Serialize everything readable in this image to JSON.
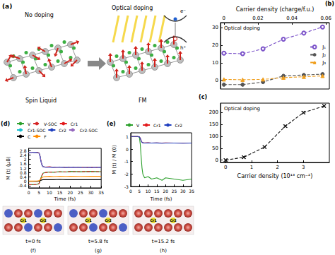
{
  "diagram": {
    "label": "(a)",
    "left": {
      "title": "No doping",
      "caption": "Spin Liquid"
    },
    "right": {
      "title": "Optical doping",
      "caption": "FM"
    },
    "carriers": [
      "e⁻",
      "h⁺"
    ]
  },
  "chart_data": [
    {
      "title": "(b)",
      "type": "line",
      "annotations": [
        "Optical doping"
      ],
      "xlabel": "Carrier density (charge/f.u.)",
      "x": [
        0,
        0.011,
        0.023,
        0.035,
        0.047,
        0.058
      ],
      "xlim": [
        -0.002,
        0.062
      ],
      "xticks": [
        0,
        0.02,
        0.04,
        0.06
      ],
      "ylim": [
        -5,
        33
      ],
      "yticks": [
        0,
        10,
        20,
        30
      ],
      "grid": false,
      "legend": "right",
      "series": [
        {
          "name": "J₁",
          "color": "#7b52c9",
          "marker": "open circle",
          "line_style": "dashed",
          "values": [
            15.5,
            15.2,
            18,
            23.5,
            27,
            30.5
          ]
        },
        {
          "name": "J₂",
          "color": "#555555",
          "marker": "circle",
          "line_style": "dashed",
          "values": [
            -2.5,
            -2.5,
            -1,
            2.5,
            3,
            3.5
          ]
        },
        {
          "name": "J₃",
          "color": "#f0a020",
          "marker": "triangle",
          "line_style": "dashed",
          "values": [
            0.5,
            0.3,
            0.5,
            1.5,
            2,
            2.5
          ]
        }
      ]
    },
    {
      "title": "(c)",
      "type": "line",
      "annotations": [
        "Optical doping"
      ],
      "xlabel": "Carrier density (10¹³ cm⁻²)",
      "x": [
        0,
        0.7,
        1.5,
        2.3,
        3.0,
        3.8
      ],
      "xlim": [
        -0.2,
        4
      ],
      "xticks": [
        0,
        1,
        2,
        3
      ],
      "ylim": [
        -10,
        240
      ],
      "yticks": [
        0,
        50,
        100,
        150,
        200
      ],
      "grid": false,
      "color": "#111111",
      "marker": "cross",
      "line_style": "dashed",
      "values": [
        0,
        12,
        55,
        143,
        200,
        228
      ]
    },
    {
      "title": "(d)",
      "type": "line",
      "xlabel": "Time (fs)",
      "ylabel": "M (t) (μB)",
      "x": [
        0,
        2,
        4,
        5,
        5.5,
        6,
        6.5,
        7,
        8,
        10,
        12,
        15,
        18,
        20,
        25,
        30,
        35
      ],
      "xlim": [
        0,
        35
      ],
      "xticks": [
        0,
        5,
        10,
        15,
        20,
        25,
        30,
        35
      ],
      "ylim": [
        -0.6,
        3.0
      ],
      "yticks": [
        -0.4,
        0,
        0.4,
        0.8,
        1.2,
        1.6,
        2,
        2.4,
        2.8
      ],
      "grid": false,
      "legend": "top",
      "series": [
        {
          "name": "V",
          "color": "#2ca02c",
          "line_style": "solid",
          "values": [
            -0.3,
            -0.3,
            -0.28,
            -0.2,
            0.05,
            0.35,
            0.6,
            0.75,
            0.8,
            0.85,
            0.82,
            0.88,
            0.85,
            0.9,
            0.87,
            0.9,
            0.88
          ]
        },
        {
          "name": "V-SOC",
          "color": "#d62728",
          "line_style": "dashed",
          "values": [
            -0.31,
            -0.31,
            -0.29,
            -0.22,
            0.03,
            0.33,
            0.58,
            0.73,
            0.79,
            0.84,
            0.83,
            0.86,
            0.86,
            0.88,
            0.88,
            0.89,
            0.87
          ]
        },
        {
          "name": "Cr1",
          "color": "#e31a1c",
          "line_style": "solid",
          "values": [
            2.65,
            2.65,
            2.64,
            2.6,
            2.3,
            1.8,
            1.45,
            1.35,
            1.3,
            1.32,
            1.28,
            1.3,
            1.27,
            1.3,
            1.28,
            1.27,
            1.28
          ]
        },
        {
          "name": "Cr1-SOC",
          "color": "#17becf",
          "line_style": "dashed",
          "values": [
            2.64,
            2.64,
            2.63,
            2.58,
            2.28,
            1.78,
            1.44,
            1.33,
            1.29,
            1.3,
            1.27,
            1.29,
            1.26,
            1.29,
            1.27,
            1.26,
            1.27
          ]
        },
        {
          "name": "Cr2",
          "color": "#1f3fbf",
          "line_style": "solid",
          "values": [
            2.63,
            2.63,
            2.62,
            2.57,
            2.25,
            1.75,
            1.42,
            1.32,
            1.28,
            1.29,
            1.26,
            1.3,
            1.25,
            1.28,
            1.26,
            1.25,
            1.26
          ]
        },
        {
          "name": "Cr2-SOC",
          "color": "#9467bd",
          "line_style": "dashed",
          "values": [
            2.62,
            2.62,
            2.61,
            2.56,
            2.24,
            1.74,
            1.41,
            1.31,
            1.27,
            1.28,
            1.27,
            1.28,
            1.26,
            1.27,
            1.25,
            1.26,
            1.25
          ]
        },
        {
          "name": "C",
          "color": "#000000",
          "line_style": "solid",
          "values": [
            0,
            0,
            0,
            0.01,
            0.05,
            0.1,
            0.13,
            0.15,
            0.15,
            0.16,
            0.15,
            0.17,
            0.15,
            0.16,
            0.15,
            0.16,
            0.15
          ]
        },
        {
          "name": "F",
          "color": "#ff8c00",
          "line_style": "solid",
          "values": [
            0.02,
            0.02,
            0.03,
            0.05,
            0.12,
            0.25,
            0.35,
            0.4,
            0.42,
            0.45,
            0.43,
            0.46,
            0.44,
            0.45,
            0.44,
            0.46,
            0.45
          ]
        }
      ]
    },
    {
      "title": "(e)",
      "type": "line",
      "xlabel": "Time (fs)",
      "ylabel": "M (t) / M (0)",
      "x": [
        0,
        2,
        4,
        5,
        5.5,
        6,
        6.5,
        7,
        8,
        10,
        12,
        15,
        18,
        20,
        25,
        30,
        35
      ],
      "xlim": [
        0,
        35
      ],
      "xticks": [
        0,
        5,
        10,
        15,
        20,
        25,
        30,
        35
      ],
      "ylim": [
        -3,
        1.3
      ],
      "yticks": [
        -3,
        -2,
        -1,
        0,
        1
      ],
      "grid": false,
      "legend": "top",
      "series": [
        {
          "name": "V",
          "color": "#2ca02c",
          "line_style": "solid",
          "values": [
            1,
            1,
            1,
            0.95,
            0.4,
            -0.6,
            -1.5,
            -2.0,
            -2.3,
            -2.2,
            -2.4,
            -2.3,
            -2.5,
            -2.3,
            -2.4,
            -2.5,
            -2.4
          ]
        },
        {
          "name": "Cr1",
          "color": "#e31a1c",
          "line_style": "solid",
          "values": [
            1,
            1,
            1,
            0.98,
            0.87,
            0.68,
            0.55,
            0.51,
            0.49,
            0.5,
            0.48,
            0.49,
            0.48,
            0.49,
            0.48,
            0.48,
            0.48
          ]
        },
        {
          "name": "Cr2",
          "color": "#1f3fbf",
          "line_style": "solid",
          "values": [
            1,
            1,
            1,
            0.97,
            0.86,
            0.67,
            0.54,
            0.5,
            0.48,
            0.49,
            0.48,
            0.49,
            0.47,
            0.48,
            0.48,
            0.47,
            0.48
          ]
        }
      ]
    }
  ],
  "images": [
    {
      "label": "(f)",
      "caption": "t=0 fs",
      "atoms": [
        "Cr1",
        "Cr2"
      ]
    },
    {
      "label": "(g)",
      "caption": "t=5.8 fs",
      "atoms": [
        "Cr1",
        "Cr2"
      ]
    },
    {
      "label": "(h)",
      "caption": "t=15.2 fs",
      "atoms": [
        "Cr1",
        "Cr2"
      ]
    }
  ]
}
